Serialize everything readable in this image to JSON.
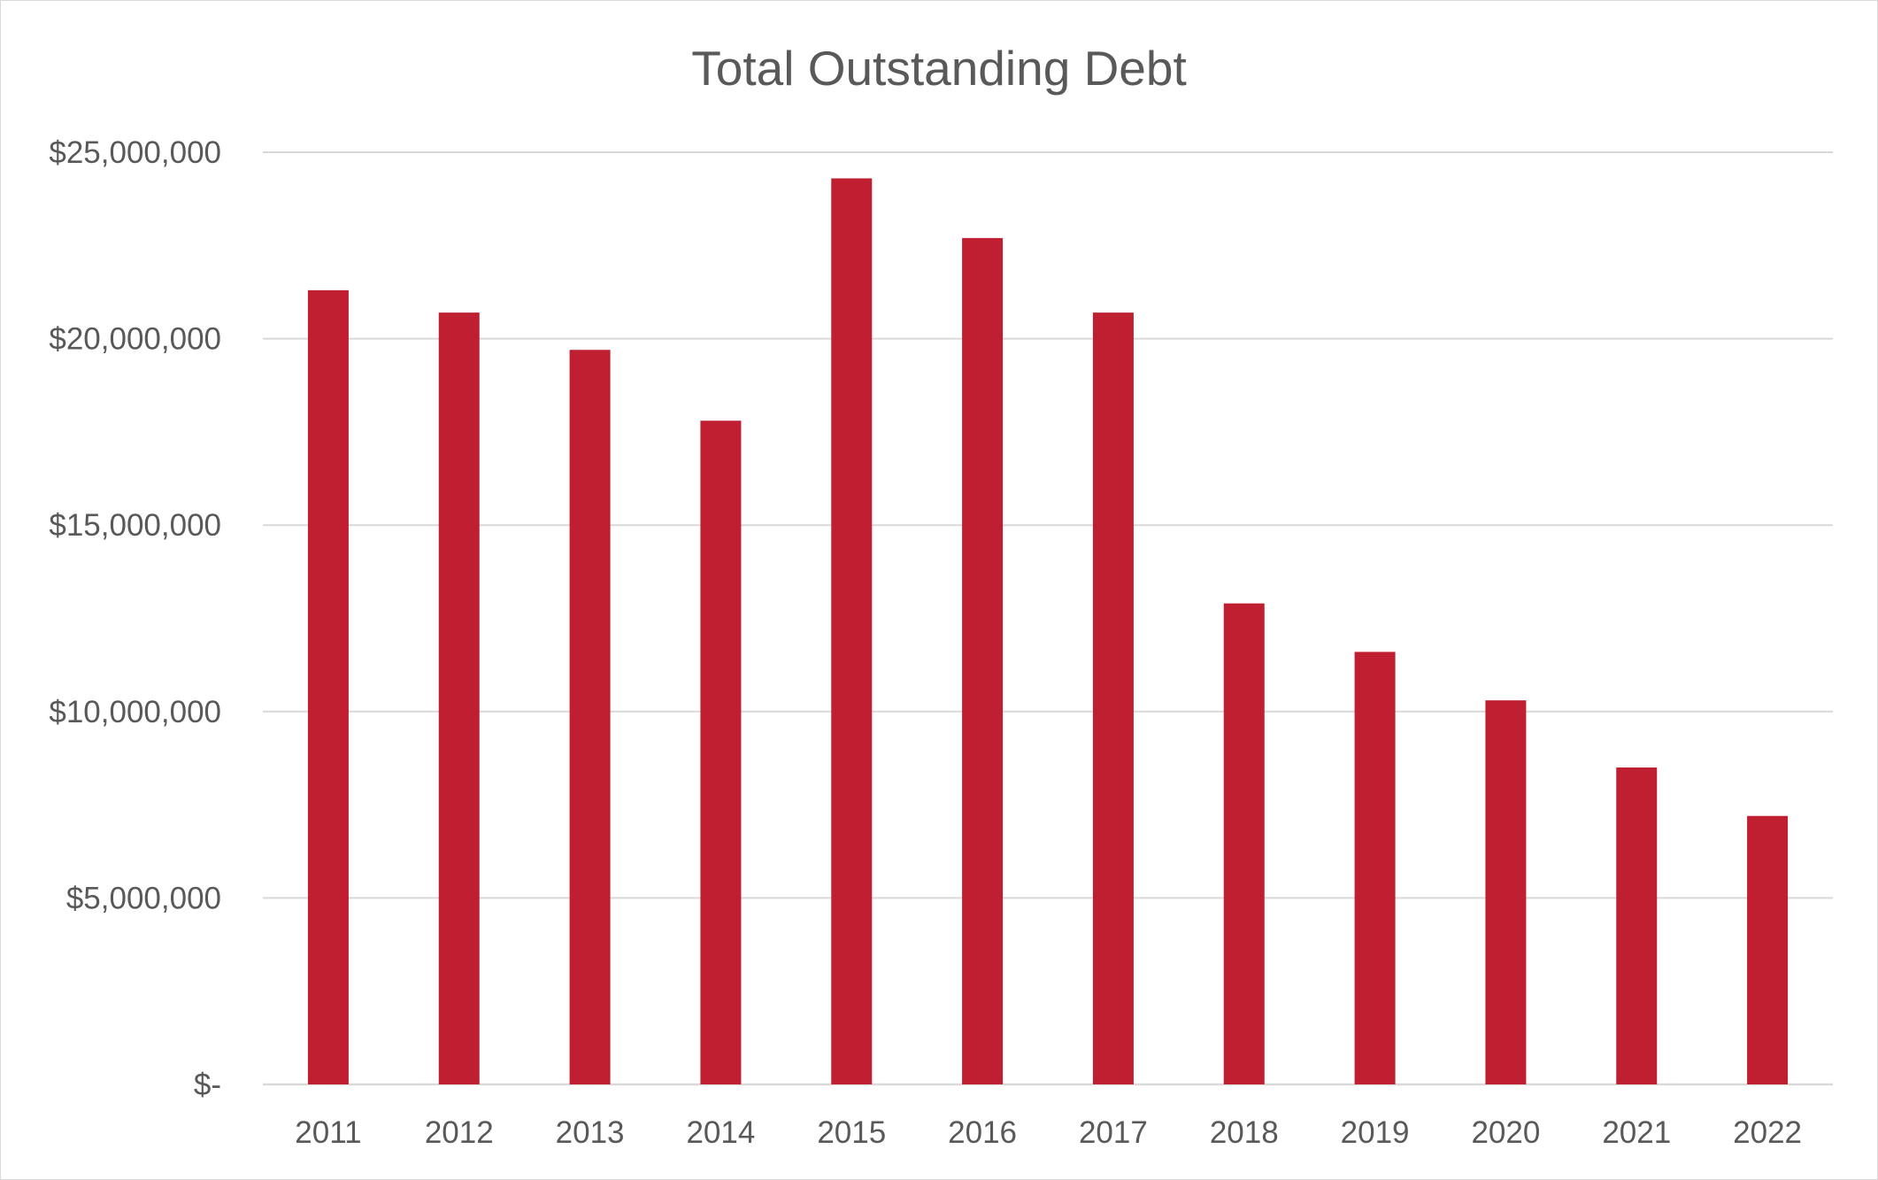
{
  "chart_data": {
    "type": "bar",
    "title": "Total Outstanding Debt",
    "xlabel": "",
    "ylabel": "",
    "categories": [
      "2011",
      "2012",
      "2013",
      "2014",
      "2015",
      "2016",
      "2017",
      "2018",
      "2019",
      "2020",
      "2021",
      "2022"
    ],
    "values": [
      21300000,
      20700000,
      19700000,
      17800000,
      24300000,
      22700000,
      20700000,
      12900000,
      11600000,
      10300000,
      8500000,
      7200000
    ],
    "ylim": [
      0,
      25000000
    ],
    "yticks": [
      0,
      5000000,
      10000000,
      15000000,
      20000000,
      25000000
    ],
    "ytick_labels": [
      "$-",
      "$5,000,000",
      "$10,000,000",
      "$15,000,000",
      "$20,000,000",
      "$25,000,000"
    ],
    "grid": true,
    "legend": "none",
    "bar_color": "#C01F32",
    "grid_color": "#D9D9D9",
    "text_color": "#595959"
  }
}
